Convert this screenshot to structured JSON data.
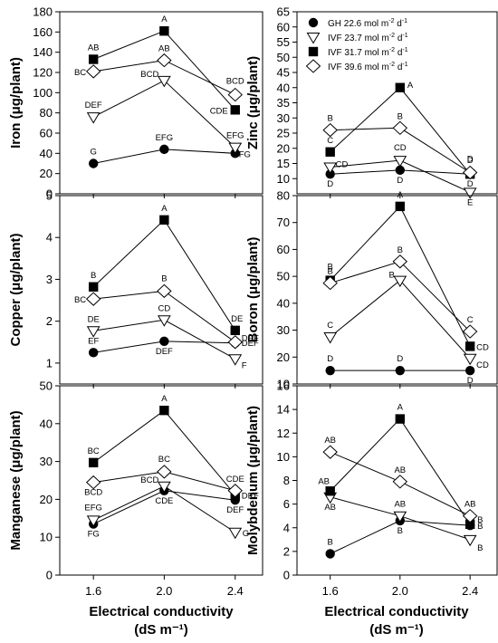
{
  "x_categories": [
    "1.6",
    "2.0",
    "2.4"
  ],
  "x_axis_label": [
    "Electrical conductivity",
    "(dS m⁻¹)"
  ],
  "legend": [
    {
      "marker": "circle-filled",
      "label": "GH 22.6 mol m",
      "sup1": "-2",
      "mid": " d",
      "sup2": "-1"
    },
    {
      "marker": "triangle-down-open",
      "label": "IVF 23.7 mol m",
      "sup1": "-2",
      "mid": " d",
      "sup2": "-1"
    },
    {
      "marker": "square-filled",
      "label": "IVF 31.7 mol m",
      "sup1": "-2",
      "mid": " d",
      "sup2": "-1"
    },
    {
      "marker": "diamond-open",
      "label": "IVF 39.6 mol m",
      "sup1": "-2",
      "mid": " d",
      "sup2": "-1"
    }
  ],
  "chart_data": [
    {
      "type": "line",
      "ylabel": "Iron (μg/plant)",
      "ylim": [
        0,
        180
      ],
      "yticks": [
        0,
        20,
        40,
        60,
        80,
        100,
        120,
        140,
        160,
        180
      ],
      "categories": [
        "1.6",
        "2.0",
        "2.4"
      ],
      "series": [
        {
          "marker": "circle-filled",
          "values": [
            30,
            44,
            40
          ],
          "letters": [
            "G",
            "EFG",
            "FG"
          ]
        },
        {
          "marker": "triangle-down-open",
          "values": [
            76,
            112,
            46
          ],
          "letters": [
            "DEF",
            "BCD",
            "EFG"
          ]
        },
        {
          "marker": "square-filled",
          "values": [
            133,
            161,
            83
          ],
          "letters": [
            "AB",
            "A",
            "CDE"
          ]
        },
        {
          "marker": "diamond-open",
          "values": [
            121,
            132,
            98
          ],
          "letters": [
            "BC",
            "AB",
            "BCD"
          ]
        }
      ]
    },
    {
      "type": "line",
      "ylabel": "Zinc (μg/plant)",
      "ylim": [
        5,
        65
      ],
      "yticks": [
        10,
        15,
        20,
        25,
        30,
        35,
        40,
        45,
        50,
        55,
        60,
        65
      ],
      "categories": [
        "1.6",
        "2.0",
        "2.4"
      ],
      "series": [
        {
          "marker": "circle-filled",
          "values": [
            11.5,
            12.8,
            11.5
          ],
          "letters": [
            "D",
            "D",
            "D"
          ]
        },
        {
          "marker": "triangle-down-open",
          "values": [
            13.8,
            16,
            5.5
          ],
          "letters": [
            "CD",
            "CD",
            "E"
          ]
        },
        {
          "marker": "square-filled",
          "values": [
            18.8,
            40,
            11.5
          ],
          "letters": [
            "C",
            "A",
            "D"
          ]
        },
        {
          "marker": "diamond-open",
          "values": [
            26,
            26.7,
            12
          ],
          "letters": [
            "B",
            "B",
            "D"
          ]
        }
      ]
    },
    {
      "type": "line",
      "ylabel": "Copper (μg/plant)",
      "ylim": [
        0.5,
        5
      ],
      "yticks": [
        1,
        2,
        3,
        4,
        5
      ],
      "categories": [
        "1.6",
        "2.0",
        "2.4"
      ],
      "series": [
        {
          "marker": "circle-filled",
          "values": [
            1.25,
            1.52,
            1.48
          ],
          "letters": [
            "EF",
            "DEF",
            "DEF"
          ]
        },
        {
          "marker": "triangle-down-open",
          "values": [
            1.77,
            2.03,
            1.1
          ],
          "letters": [
            "DE",
            "CD",
            "F"
          ]
        },
        {
          "marker": "square-filled",
          "values": [
            2.82,
            4.42,
            1.78
          ],
          "letters": [
            "B",
            "A",
            "DE"
          ]
        },
        {
          "marker": "diamond-open",
          "values": [
            2.53,
            2.72,
            1.5
          ],
          "letters": [
            "BC",
            "B",
            "DEF"
          ]
        }
      ]
    },
    {
      "type": "line",
      "ylabel": "Boron (μg/plant)",
      "ylim": [
        10,
        80
      ],
      "yticks": [
        10,
        20,
        30,
        40,
        50,
        60,
        70,
        80
      ],
      "categories": [
        "1.6",
        "2.0",
        "2.4"
      ],
      "series": [
        {
          "marker": "circle-filled",
          "values": [
            15,
            15,
            15
          ],
          "letters": [
            "D",
            "D",
            "D"
          ]
        },
        {
          "marker": "triangle-down-open",
          "values": [
            27.5,
            48.5,
            19.5
          ],
          "letters": [
            "C",
            "B",
            "CD"
          ]
        },
        {
          "marker": "square-filled",
          "values": [
            48.5,
            76,
            24
          ],
          "letters": [
            "B",
            "A",
            "CD"
          ]
        },
        {
          "marker": "diamond-open",
          "values": [
            47.5,
            55.5,
            29.5
          ],
          "letters": [
            "B",
            "B",
            "C"
          ]
        }
      ]
    },
    {
      "type": "line",
      "ylabel": "Manganese (μg/plant)",
      "ylim": [
        0,
        50
      ],
      "yticks": [
        0,
        10,
        20,
        30,
        40,
        50
      ],
      "categories": [
        "1.6",
        "2.0",
        "2.4"
      ],
      "series": [
        {
          "marker": "circle-filled",
          "values": [
            13.5,
            22.3,
            19.8
          ],
          "letters": [
            "FG",
            "CDE",
            "DEF"
          ]
        },
        {
          "marker": "triangle-down-open",
          "values": [
            14.5,
            23.5,
            11.3
          ],
          "letters": [
            "EFG",
            "BCD",
            "G"
          ]
        },
        {
          "marker": "square-filled",
          "values": [
            29.7,
            43.5,
            21.2
          ],
          "letters": [
            "BC",
            "A",
            "DEF"
          ]
        },
        {
          "marker": "diamond-open",
          "values": [
            24.5,
            27.3,
            22.3
          ],
          "letters": [
            "BCD",
            "BC",
            "CDE"
          ]
        }
      ]
    },
    {
      "type": "line",
      "ylabel": "Molybdenum (μg/plant)",
      "ylim": [
        0,
        16
      ],
      "yticks": [
        0,
        2,
        4,
        6,
        8,
        10,
        12,
        14,
        16
      ],
      "categories": [
        "1.6",
        "2.0",
        "2.4"
      ],
      "series": [
        {
          "marker": "circle-filled",
          "values": [
            1.8,
            4.6,
            4.2
          ],
          "letters": [
            "B",
            "B",
            "B"
          ]
        },
        {
          "marker": "triangle-down-open",
          "values": [
            6.6,
            5.0,
            3.0
          ],
          "letters": [
            "AB",
            "AB",
            "B"
          ]
        },
        {
          "marker": "square-filled",
          "values": [
            7.1,
            13.2,
            4.3
          ],
          "letters": [
            "AB",
            "A",
            "B"
          ]
        },
        {
          "marker": "diamond-open",
          "values": [
            10.4,
            7.9,
            5.0
          ],
          "letters": [
            "AB",
            "AB",
            "AB"
          ]
        }
      ]
    }
  ]
}
